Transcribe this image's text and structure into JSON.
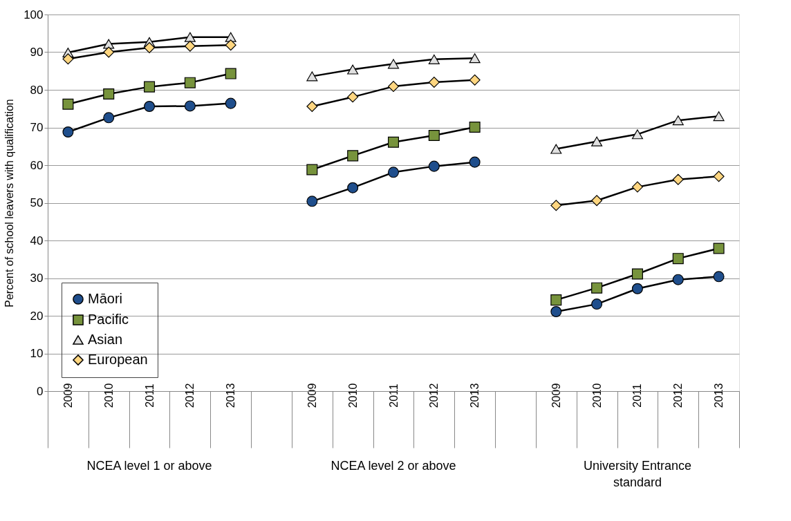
{
  "chart_data": {
    "type": "line",
    "ylabel": "Percent of school leavers  with qualification",
    "categories": [
      "2009",
      "2010",
      "2011",
      "2012",
      "2013",
      null,
      "2009",
      "2010",
      "2011",
      "2012",
      "2013",
      null,
      "2009",
      "2010",
      "2011",
      "2012",
      "2013"
    ],
    "series": [
      {
        "name": "Māori",
        "color": "#1f4e8c",
        "marker": "circle",
        "values": [
          68.8,
          72.6,
          75.6,
          75.7,
          76.4,
          null,
          50.4,
          54.0,
          58.1,
          59.7,
          60.8,
          null,
          21.1,
          23.1,
          27.2,
          29.6,
          30.4
        ]
      },
      {
        "name": "Pacific",
        "color": "#77933c",
        "marker": "square",
        "values": [
          76.2,
          78.9,
          80.8,
          81.9,
          84.3,
          null,
          58.8,
          62.5,
          66.1,
          67.9,
          70.1,
          null,
          24.2,
          27.4,
          31.1,
          35.2,
          37.9
        ]
      },
      {
        "name": "Asian",
        "color": "#e0e0e0",
        "marker": "triangle",
        "values": [
          89.9,
          92.2,
          92.7,
          94.0,
          94.0,
          null,
          83.6,
          85.4,
          86.9,
          88.1,
          88.4,
          null,
          64.3,
          66.3,
          68.2,
          71.9,
          73.0
        ]
      },
      {
        "name": "European",
        "color": "#ffd680",
        "marker": "diamond",
        "values": [
          88.2,
          90.0,
          91.2,
          91.6,
          91.9,
          null,
          75.6,
          78.1,
          80.9,
          82.0,
          82.6,
          null,
          49.3,
          50.6,
          54.2,
          56.2,
          57.0
        ]
      }
    ],
    "ylim": [
      0,
      100
    ],
    "yticks": [
      0,
      10,
      20,
      30,
      40,
      50,
      60,
      70,
      80,
      90,
      100
    ],
    "grid": "y",
    "legend": "bottom left",
    "line_style": "solid",
    "annotations": [
      "NCEA level 1 or above",
      "NCEA level 2 or above",
      "University Entrance standard"
    ]
  }
}
